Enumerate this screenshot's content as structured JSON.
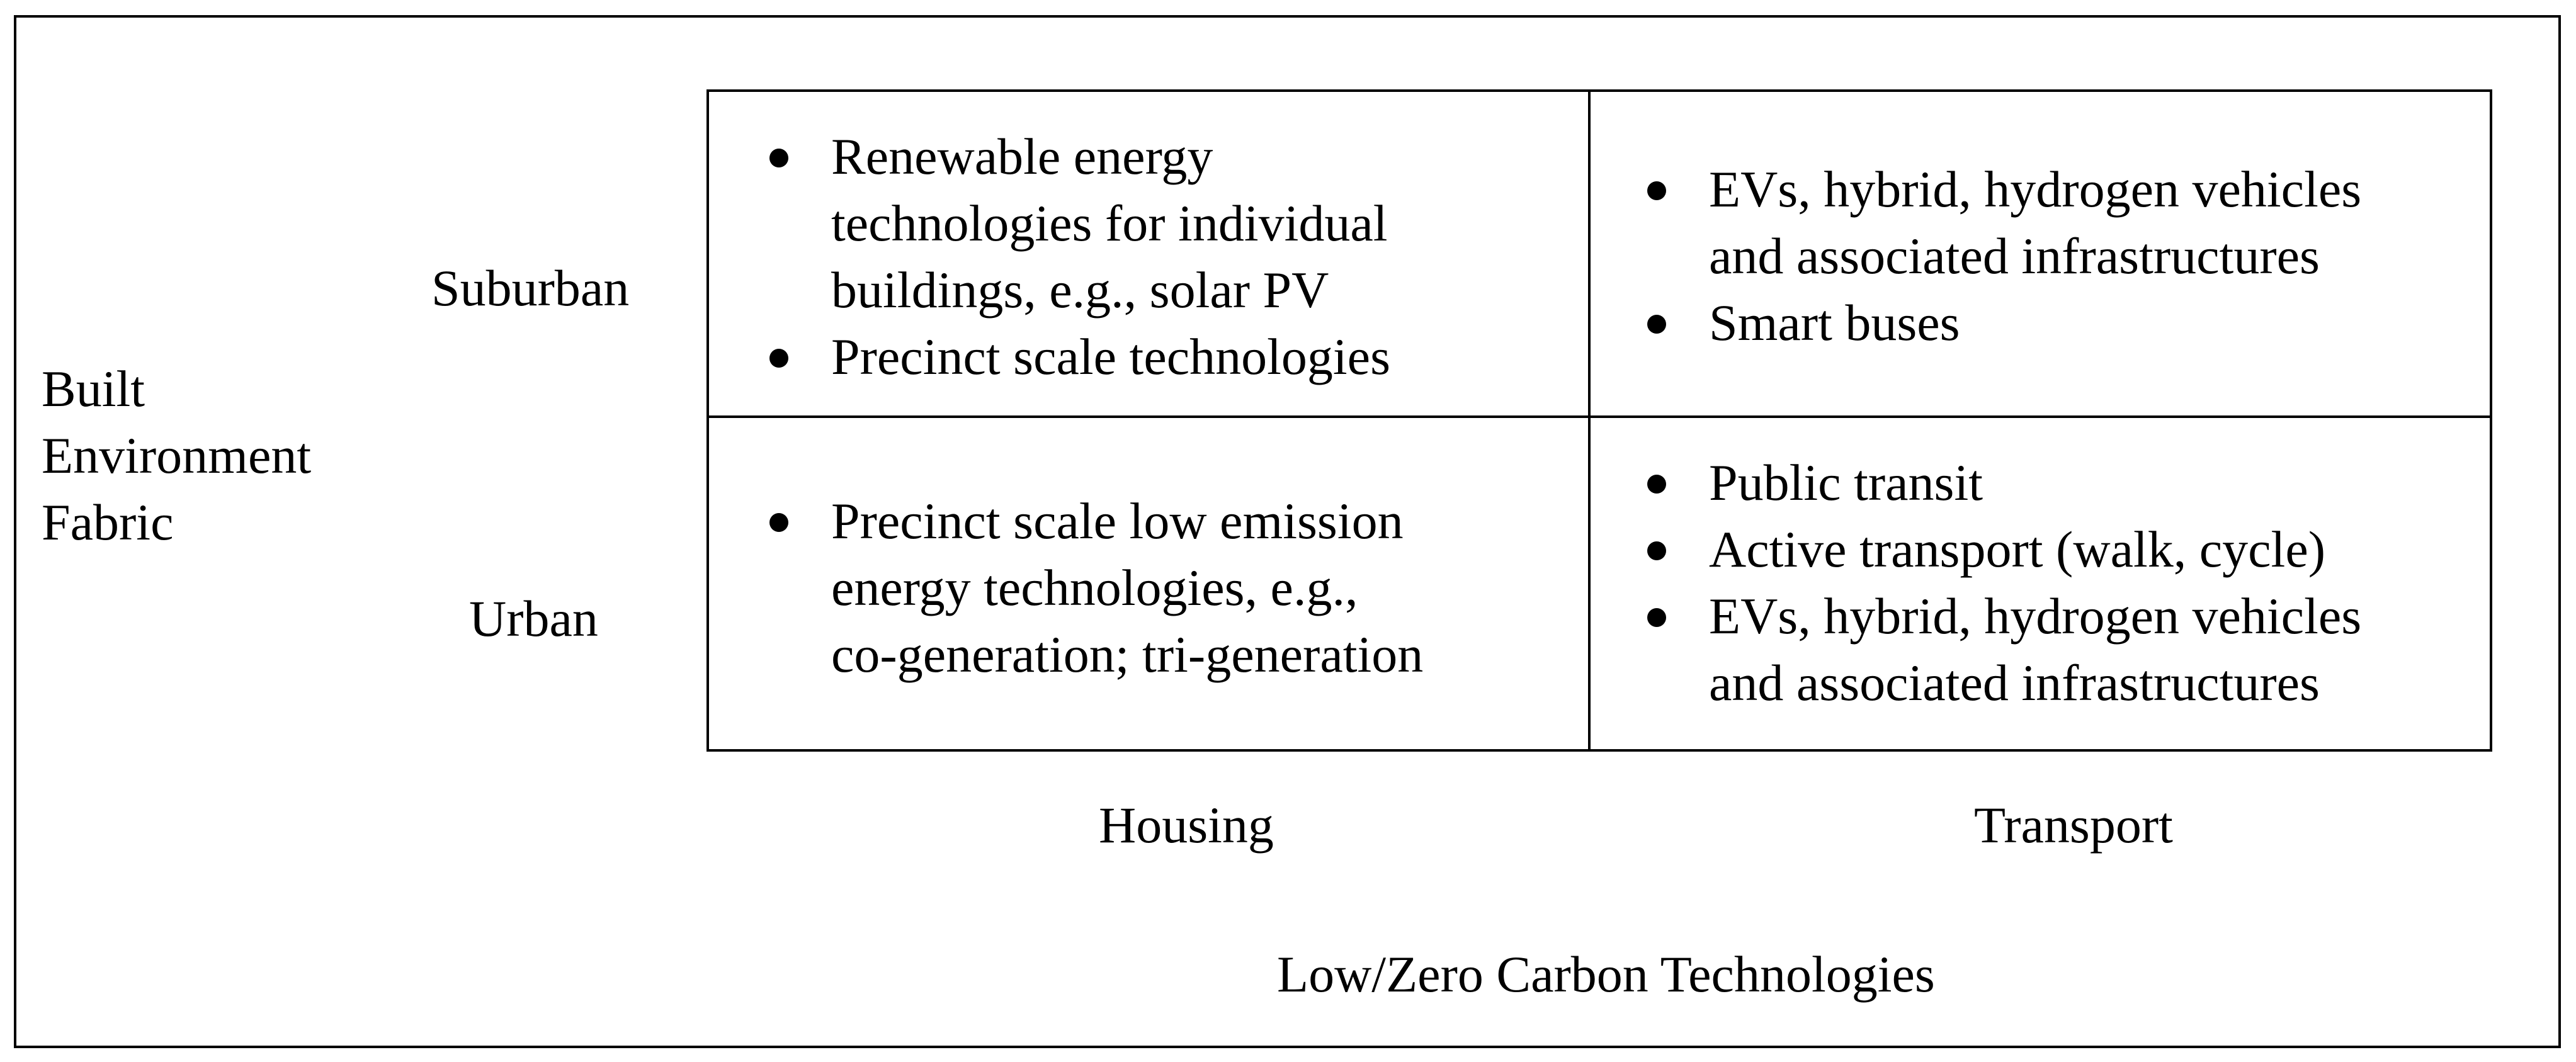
{
  "diagram": {
    "y_axis_title_lines": [
      "Built",
      "Environment",
      "Fabric"
    ],
    "x_axis_title": "Low/Zero Carbon Technologies",
    "rows": [
      "Suburban",
      "Urban"
    ],
    "columns": [
      "Housing",
      "Transport"
    ],
    "cells": {
      "suburban_housing": [
        {
          "lines": [
            "Renewable energy",
            "technologies for individual",
            "buildings, e.g., solar PV"
          ]
        },
        {
          "lines": [
            "Precinct scale technologies"
          ]
        }
      ],
      "suburban_transport": [
        {
          "lines": [
            "EVs, hybrid, hydrogen vehicles",
            "and associated infrastructures"
          ]
        },
        {
          "lines": [
            "Smart buses"
          ]
        }
      ],
      "urban_housing": [
        {
          "lines": [
            "Precinct scale low emission",
            "energy technologies, e.g.,",
            "co-generation; tri-generation"
          ]
        }
      ],
      "urban_transport": [
        {
          "lines": [
            "Public transit"
          ]
        },
        {
          "lines": [
            "Active transport (walk, cycle)"
          ]
        },
        {
          "lines": [
            "EVs, hybrid, hydrogen vehicles",
            "and associated infrastructures"
          ]
        }
      ]
    }
  }
}
